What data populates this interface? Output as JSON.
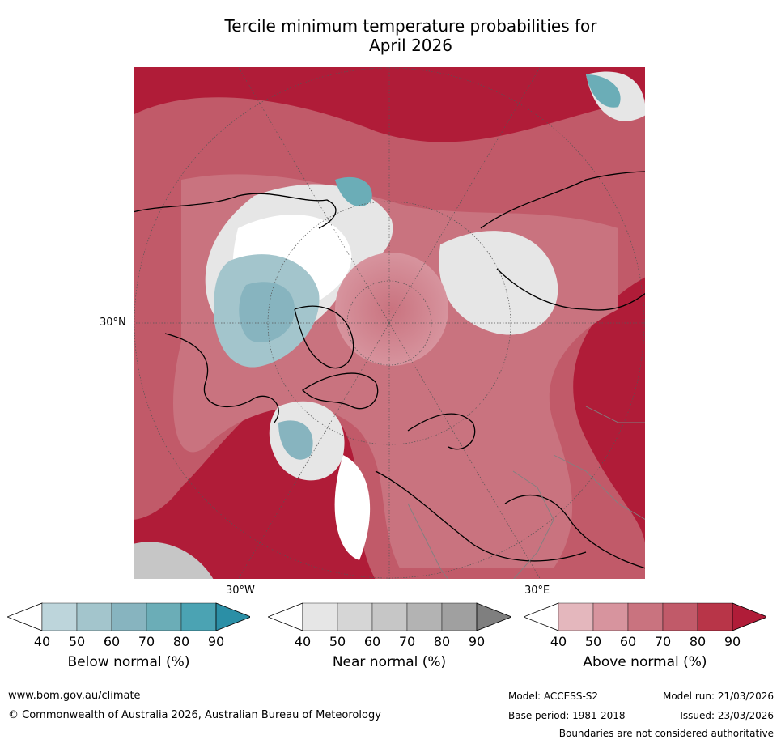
{
  "title": {
    "line1": "Tercile minimum temperature probabilities for",
    "line2": "April 2026"
  },
  "map": {
    "lat_label": "30°N",
    "lon_labels": [
      "30°W",
      "30°E"
    ]
  },
  "colors": {
    "below": [
      "#ffffff",
      "#bdd5db",
      "#a3c5cc",
      "#87b4bf",
      "#6badb7",
      "#4ba3b3",
      "#2b8fa6"
    ],
    "near": [
      "#ffffff",
      "#e6e6e6",
      "#d6d6d6",
      "#c6c6c6",
      "#b3b3b3",
      "#a0a0a0",
      "#7f7f7f"
    ],
    "above": [
      "#ffffff",
      "#e4b7bd",
      "#d7949e",
      "#c9737f",
      "#c15a69",
      "#b83548",
      "#b01c38"
    ]
  },
  "legends": [
    {
      "label": "Below normal (%)",
      "ticks": [
        "40",
        "50",
        "60",
        "70",
        "80",
        "90"
      ]
    },
    {
      "label": "Near normal (%)",
      "ticks": [
        "40",
        "50",
        "60",
        "70",
        "80",
        "90"
      ]
    },
    {
      "label": "Above normal (%)",
      "ticks": [
        "40",
        "50",
        "60",
        "70",
        "80",
        "90"
      ]
    }
  ],
  "footer": {
    "website": "www.bom.gov.au/climate",
    "copyright": "© Commonwealth of Australia 2026, Australian Bureau of Meteorology",
    "model": "Model: ACCESS-S2",
    "base_period": "Base period: 1981-2018",
    "model_run": "Model run: 21/03/2026",
    "issued": "Issued: 23/03/2026",
    "disclaimer": "Boundaries are not considered authoritative"
  }
}
